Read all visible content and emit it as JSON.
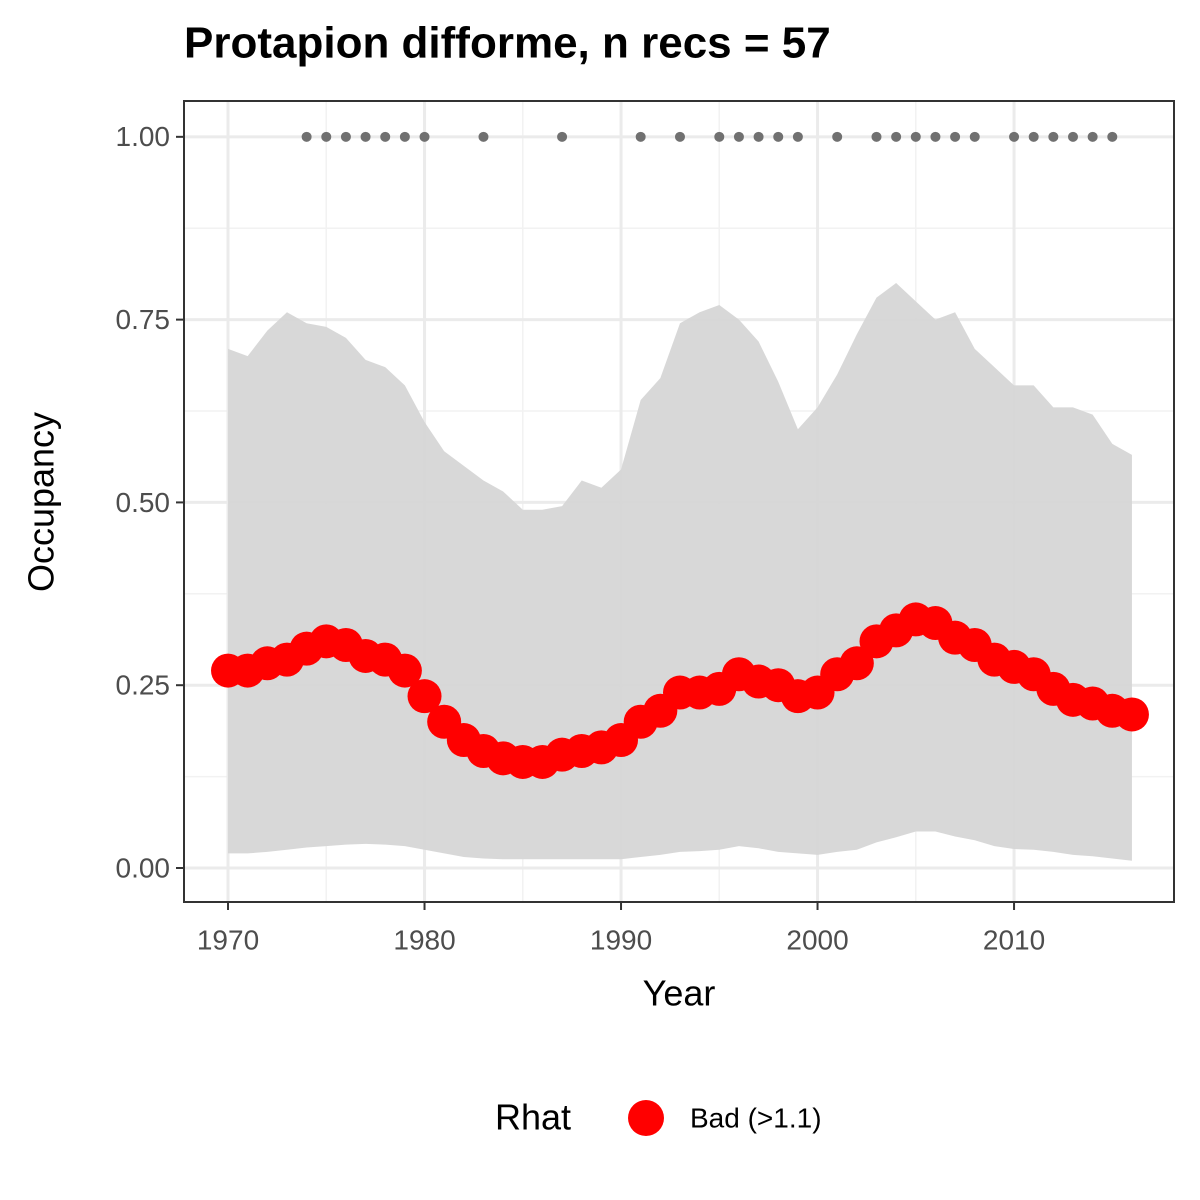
{
  "chart_data": {
    "type": "line",
    "title": "Protapion difforme, n recs = 57",
    "xlabel": "Year",
    "ylabel": "Occupancy",
    "x": [
      1970,
      1971,
      1972,
      1973,
      1974,
      1975,
      1976,
      1977,
      1978,
      1979,
      1980,
      1981,
      1982,
      1983,
      1984,
      1985,
      1986,
      1987,
      1988,
      1989,
      1990,
      1991,
      1992,
      1993,
      1994,
      1995,
      1996,
      1997,
      1998,
      1999,
      2000,
      2001,
      2002,
      2003,
      2004,
      2005,
      2006,
      2007,
      2008,
      2009,
      2010,
      2011,
      2012,
      2013,
      2014,
      2015,
      2016
    ],
    "series": [
      {
        "name": "Bad (>1.1)",
        "color": "#ff0000",
        "values": [
          0.27,
          0.27,
          0.28,
          0.285,
          0.3,
          0.31,
          0.305,
          0.29,
          0.285,
          0.27,
          0.235,
          0.2,
          0.175,
          0.16,
          0.15,
          0.145,
          0.145,
          0.155,
          0.16,
          0.165,
          0.175,
          0.2,
          0.215,
          0.24,
          0.24,
          0.245,
          0.265,
          0.255,
          0.25,
          0.235,
          0.24,
          0.265,
          0.28,
          0.31,
          0.325,
          0.34,
          0.335,
          0.315,
          0.305,
          0.285,
          0.275,
          0.265,
          0.245,
          0.23,
          0.225,
          0.215,
          0.21
        ]
      }
    ],
    "band": {
      "color": "#d6d6d6",
      "upper": [
        0.71,
        0.7,
        0.735,
        0.76,
        0.745,
        0.74,
        0.725,
        0.695,
        0.685,
        0.66,
        0.61,
        0.57,
        0.55,
        0.53,
        0.515,
        0.49,
        0.49,
        0.495,
        0.53,
        0.52,
        0.545,
        0.64,
        0.67,
        0.745,
        0.76,
        0.77,
        0.75,
        0.72,
        0.665,
        0.6,
        0.63,
        0.675,
        0.73,
        0.78,
        0.8,
        0.775,
        0.75,
        0.76,
        0.71,
        0.685,
        0.66,
        0.66,
        0.63,
        0.63,
        0.62,
        0.58,
        0.565
      ],
      "lower": [
        0.02,
        0.02,
        0.022,
        0.025,
        0.028,
        0.03,
        0.032,
        0.033,
        0.032,
        0.03,
        0.025,
        0.02,
        0.015,
        0.013,
        0.012,
        0.012,
        0.012,
        0.012,
        0.012,
        0.012,
        0.012,
        0.015,
        0.018,
        0.022,
        0.023,
        0.025,
        0.03,
        0.027,
        0.022,
        0.02,
        0.018,
        0.022,
        0.025,
        0.035,
        0.042,
        0.05,
        0.05,
        0.043,
        0.038,
        0.03,
        0.026,
        0.025,
        0.022,
        0.018,
        0.016,
        0.013,
        0.01
      ]
    },
    "records": {
      "color": "#707070",
      "x": [
        1974,
        1975,
        1976,
        1977,
        1978,
        1979,
        1980,
        1983,
        1987,
        1991,
        1993,
        1995,
        1996,
        1997,
        1998,
        1999,
        2001,
        2003,
        2004,
        2005,
        2006,
        2007,
        2008,
        2010,
        2011,
        2012,
        2013,
        2014,
        2015
      ],
      "values": [
        1,
        1,
        1,
        1,
        1,
        1,
        1,
        1,
        1,
        1,
        1,
        1,
        1,
        1,
        1,
        1,
        1,
        1,
        1,
        1,
        1,
        1,
        1,
        1,
        1,
        1,
        1,
        1,
        1
      ]
    },
    "legend_title": "Rhat",
    "legend": "bottom",
    "grid": true,
    "xlim": [
      1967.76,
      2018.14
    ],
    "ylim": [
      -0.0465,
      1.049
    ],
    "xticks": [
      1970,
      1980,
      1990,
      2000,
      2010
    ],
    "yticks": [
      {
        "value": 0,
        "label": "0.00"
      },
      {
        "value": 0.25,
        "label": "0.25"
      },
      {
        "value": 0.5,
        "label": "0.50"
      },
      {
        "value": 0.75,
        "label": "0.75"
      },
      {
        "value": 1,
        "label": "1.00"
      }
    ]
  }
}
